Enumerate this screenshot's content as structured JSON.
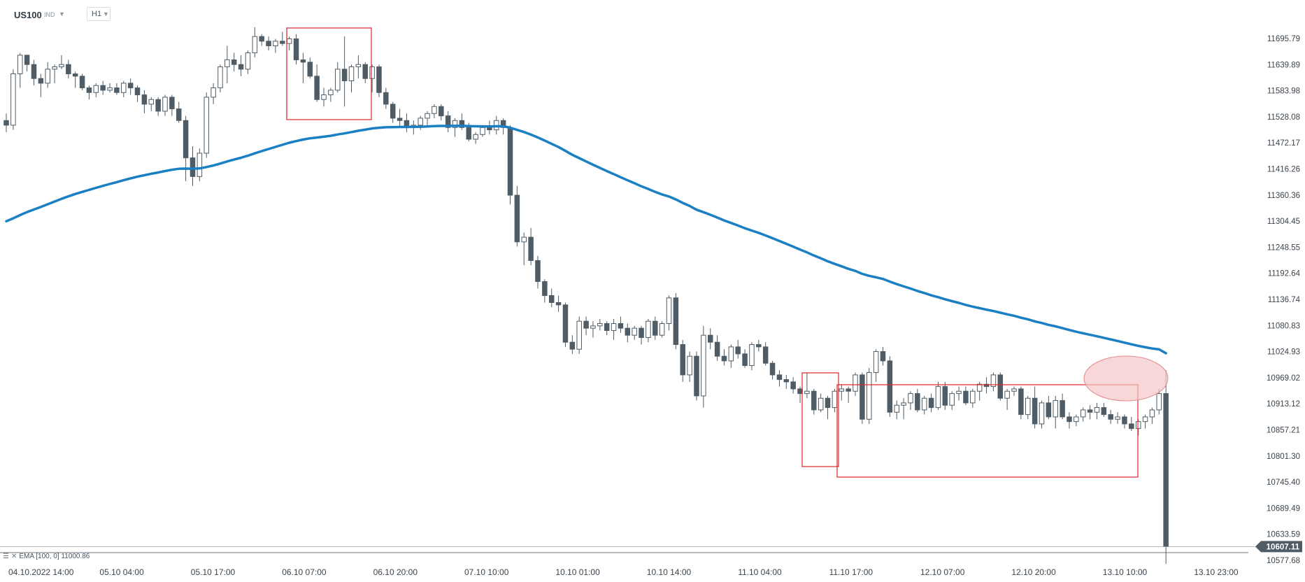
{
  "toolbar": {
    "symbol": "US100",
    "type": "IND",
    "timeframe": "H1"
  },
  "indicator": {
    "label": "EMA [100, 0] 11000.86"
  },
  "colors": {
    "bull_fill": "#ffffff",
    "bear_fill": "#4f5c66",
    "wick": "#4f5c66",
    "ema": "#1b7fc4",
    "box": "#d9262b",
    "highlight": "#f4c6c6",
    "last_price_bg": "#4f5c66"
  },
  "chart_data": {
    "type": "candlestick",
    "symbol": "US100",
    "timeframe": "H1",
    "ylim": [
      10570,
      11720
    ],
    "y_ticks": [
      "11695.79",
      "11639.89",
      "11583.98",
      "11528.08",
      "11472.17",
      "11416.26",
      "11360.36",
      "11304.45",
      "11248.55",
      "11192.64",
      "11136.74",
      "11080.83",
      "11024.93",
      "10969.02",
      "10913.12",
      "10857.21",
      "10801.30",
      "10745.40",
      "10689.49",
      "10633.59",
      "10577.68"
    ],
    "x_ticks": [
      "04.10.2022 14:00",
      "05.10 04:00",
      "05.10 17:00",
      "06.10 07:00",
      "06.10 20:00",
      "07.10 10:00",
      "10.10 01:00",
      "10.10 14:00",
      "11.10 04:00",
      "11.10 17:00",
      "12.10 07:00",
      "12.10 20:00",
      "13.10 10:00",
      "13.10 23:00"
    ],
    "last_price": "10607.11",
    "candles": [
      [
        11520,
        11535,
        11495,
        11510
      ],
      [
        11510,
        11630,
        11500,
        11620
      ],
      [
        11620,
        11665,
        11590,
        11660
      ],
      [
        11660,
        11660,
        11625,
        11640
      ],
      [
        11640,
        11650,
        11595,
        11610
      ],
      [
        11610,
        11620,
        11570,
        11600
      ],
      [
        11600,
        11645,
        11590,
        11630
      ],
      [
        11630,
        11640,
        11600,
        11635
      ],
      [
        11635,
        11660,
        11630,
        11640
      ],
      [
        11640,
        11650,
        11610,
        11620
      ],
      [
        11620,
        11625,
        11590,
        11615
      ],
      [
        11615,
        11620,
        11585,
        11590
      ],
      [
        11590,
        11595,
        11565,
        11580
      ],
      [
        11580,
        11600,
        11570,
        11595
      ],
      [
        11595,
        11605,
        11575,
        11585
      ],
      [
        11585,
        11600,
        11580,
        11590
      ],
      [
        11590,
        11600,
        11575,
        11580
      ],
      [
        11580,
        11605,
        11570,
        11600
      ],
      [
        11600,
        11610,
        11575,
        11590
      ],
      [
        11590,
        11595,
        11560,
        11575
      ],
      [
        11575,
        11585,
        11535,
        11555
      ],
      [
        11555,
        11570,
        11540,
        11565
      ],
      [
        11565,
        11570,
        11530,
        11540
      ],
      [
        11540,
        11575,
        11530,
        11570
      ],
      [
        11570,
        11575,
        11530,
        11545
      ],
      [
        11545,
        11560,
        11515,
        11520
      ],
      [
        11520,
        11530,
        11390,
        11440
      ],
      [
        11440,
        11465,
        11380,
        11400
      ],
      [
        11400,
        11460,
        11390,
        11450
      ],
      [
        11450,
        11580,
        11440,
        11570
      ],
      [
        11570,
        11600,
        11555,
        11590
      ],
      [
        11590,
        11640,
        11580,
        11635
      ],
      [
        11635,
        11680,
        11600,
        11650
      ],
      [
        11650,
        11665,
        11625,
        11640
      ],
      [
        11640,
        11660,
        11615,
        11630
      ],
      [
        11630,
        11670,
        11620,
        11665
      ],
      [
        11665,
        11720,
        11655,
        11700
      ],
      [
        11700,
        11705,
        11680,
        11690
      ],
      [
        11690,
        11700,
        11670,
        11680
      ],
      [
        11680,
        11695,
        11665,
        11690
      ],
      [
        11690,
        11710,
        11680,
        11685
      ],
      [
        11685,
        11700,
        11670,
        11695
      ],
      [
        11695,
        11705,
        11640,
        11650
      ],
      [
        11650,
        11665,
        11600,
        11645
      ],
      [
        11645,
        11655,
        11610,
        11615
      ],
      [
        11615,
        11640,
        11560,
        11565
      ],
      [
        11565,
        11590,
        11550,
        11575
      ],
      [
        11575,
        11590,
        11560,
        11585
      ],
      [
        11585,
        11645,
        11580,
        11630
      ],
      [
        11630,
        11700,
        11550,
        11605
      ],
      [
        11605,
        11640,
        11580,
        11635
      ],
      [
        11635,
        11660,
        11610,
        11640
      ],
      [
        11640,
        11645,
        11600,
        11610
      ],
      [
        11610,
        11640,
        11580,
        11635
      ],
      [
        11635,
        11640,
        11570,
        11580
      ],
      [
        11580,
        11590,
        11545,
        11555
      ],
      [
        11555,
        11560,
        11515,
        11525
      ],
      [
        11525,
        11545,
        11505,
        11520
      ],
      [
        11520,
        11535,
        11495,
        11505
      ],
      [
        11505,
        11520,
        11490,
        11510
      ],
      [
        11510,
        11530,
        11500,
        11525
      ],
      [
        11525,
        11540,
        11510,
        11535
      ],
      [
        11535,
        11555,
        11525,
        11550
      ],
      [
        11550,
        11555,
        11520,
        11530
      ],
      [
        11530,
        11540,
        11495,
        11505
      ],
      [
        11505,
        11525,
        11485,
        11520
      ],
      [
        11520,
        11535,
        11500,
        11505
      ],
      [
        11505,
        11515,
        11475,
        11480
      ],
      [
        11480,
        11495,
        11470,
        11490
      ],
      [
        11490,
        11510,
        11485,
        11505
      ],
      [
        11505,
        11520,
        11490,
        11500
      ],
      [
        11500,
        11530,
        11490,
        11520
      ],
      [
        11520,
        11525,
        11490,
        11505
      ],
      [
        11505,
        11510,
        11340,
        11360
      ],
      [
        11360,
        11380,
        11250,
        11260
      ],
      [
        11260,
        11280,
        11210,
        11270
      ],
      [
        11270,
        11290,
        11210,
        11220
      ],
      [
        11220,
        11230,
        11160,
        11175
      ],
      [
        11175,
        11180,
        11130,
        11145
      ],
      [
        11145,
        11160,
        11120,
        11130
      ],
      [
        11130,
        11145,
        11110,
        11125
      ],
      [
        11125,
        11130,
        11035,
        11045
      ],
      [
        11045,
        11060,
        11020,
        11030
      ],
      [
        11030,
        11100,
        11020,
        11090
      ],
      [
        11090,
        11100,
        11060,
        11075
      ],
      [
        11075,
        11090,
        11055,
        11080
      ],
      [
        11080,
        11095,
        11070,
        11085
      ],
      [
        11085,
        11090,
        11060,
        11070
      ],
      [
        11070,
        11095,
        11050,
        11085
      ],
      [
        11085,
        11100,
        11065,
        11075
      ],
      [
        11075,
        11085,
        11045,
        11060
      ],
      [
        11060,
        11080,
        11050,
        11075
      ],
      [
        11075,
        11080,
        11040,
        11055
      ],
      [
        11055,
        11095,
        11045,
        11090
      ],
      [
        11090,
        11100,
        11050,
        11060
      ],
      [
        11060,
        11090,
        11055,
        11085
      ],
      [
        11085,
        11145,
        11070,
        11140
      ],
      [
        11140,
        11150,
        11030,
        11040
      ],
      [
        11040,
        11050,
        10960,
        10975
      ],
      [
        10975,
        11025,
        10960,
        11015
      ],
      [
        11015,
        11025,
        10920,
        10930
      ],
      [
        10930,
        11080,
        10905,
        11060
      ],
      [
        11060,
        11075,
        11030,
        11045
      ],
      [
        11045,
        11060,
        11005,
        11015
      ],
      [
        11015,
        11030,
        10995,
        11005
      ],
      [
        11005,
        11040,
        10990,
        11035
      ],
      [
        11035,
        11050,
        11010,
        11020
      ],
      [
        11020,
        11030,
        10990,
        10995
      ],
      [
        10995,
        11045,
        10985,
        11040
      ],
      [
        11040,
        11050,
        11025,
        11035
      ],
      [
        11035,
        11045,
        10995,
        11000
      ],
      [
        11000,
        11005,
        10965,
        10975
      ],
      [
        10975,
        10985,
        10950,
        10965
      ],
      [
        10965,
        10975,
        10945,
        10960
      ],
      [
        10960,
        10970,
        10935,
        10945
      ],
      [
        10945,
        10950,
        10915,
        10935
      ],
      [
        10935,
        10980,
        10925,
        10940
      ],
      [
        10940,
        10945,
        10890,
        10900
      ],
      [
        10900,
        10935,
        10895,
        10925
      ],
      [
        10925,
        10930,
        10880,
        10905
      ],
      [
        10905,
        10945,
        10895,
        10940
      ],
      [
        10940,
        10955,
        10920,
        10945
      ],
      [
        10945,
        10950,
        10915,
        10940
      ],
      [
        10940,
        10980,
        10930,
        10975
      ],
      [
        10975,
        10980,
        10870,
        10880
      ],
      [
        10880,
        10990,
        10870,
        10980
      ],
      [
        10980,
        11030,
        10960,
        11025
      ],
      [
        11025,
        11035,
        10995,
        11005
      ],
      [
        11005,
        11015,
        10885,
        10895
      ],
      [
        10895,
        10920,
        10880,
        10910
      ],
      [
        10910,
        10925,
        10880,
        10915
      ],
      [
        10915,
        10940,
        10900,
        10935
      ],
      [
        10935,
        10945,
        10895,
        10900
      ],
      [
        10900,
        10930,
        10890,
        10925
      ],
      [
        10925,
        10935,
        10895,
        10905
      ],
      [
        10905,
        10960,
        10900,
        10950
      ],
      [
        10950,
        10960,
        10900,
        10910
      ],
      [
        10910,
        10940,
        10900,
        10935
      ],
      [
        10935,
        10950,
        10920,
        10940
      ],
      [
        10940,
        10950,
        10910,
        10915
      ],
      [
        10915,
        10945,
        10905,
        10940
      ],
      [
        10940,
        10960,
        10920,
        10955
      ],
      [
        10955,
        10970,
        10935,
        10950
      ],
      [
        10950,
        10980,
        10940,
        10975
      ],
      [
        10975,
        10980,
        10920,
        10925
      ],
      [
        10925,
        10945,
        10900,
        10940
      ],
      [
        10940,
        10950,
        10930,
        10945
      ],
      [
        10945,
        10950,
        10880,
        10890
      ],
      [
        10890,
        10930,
        10880,
        10925
      ],
      [
        10925,
        10950,
        10860,
        10870
      ],
      [
        10870,
        10920,
        10860,
        10915
      ],
      [
        10915,
        10930,
        10880,
        10885
      ],
      [
        10885,
        10930,
        10860,
        10920
      ],
      [
        10920,
        10935,
        10880,
        10885
      ],
      [
        10885,
        10895,
        10860,
        10875
      ],
      [
        10875,
        10890,
        10865,
        10885
      ],
      [
        10885,
        10905,
        10875,
        10900
      ],
      [
        10900,
        10910,
        10880,
        10895
      ],
      [
        10895,
        10915,
        10880,
        10905
      ],
      [
        10905,
        10915,
        10885,
        10890
      ],
      [
        10890,
        10900,
        10870,
        10880
      ],
      [
        10880,
        10895,
        10870,
        10885
      ],
      [
        10885,
        10890,
        10860,
        10870
      ],
      [
        10870,
        10885,
        10855,
        10860
      ],
      [
        10860,
        10880,
        10845,
        10875
      ],
      [
        10875,
        10890,
        10860,
        10885
      ],
      [
        10885,
        10905,
        10870,
        10900
      ],
      [
        10900,
        10945,
        10890,
        10935
      ],
      [
        10935,
        10985,
        10570,
        10607
      ]
    ],
    "ema": {
      "name": "EMA [100, 0]",
      "value": "11000.86"
    }
  }
}
